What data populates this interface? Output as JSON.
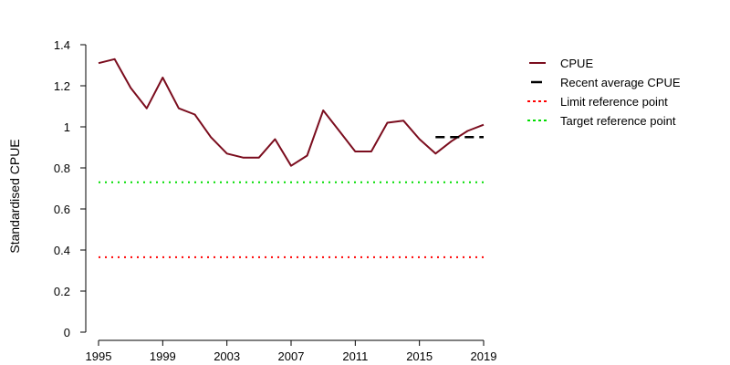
{
  "chart_data": {
    "type": "line",
    "ylabel": "Standardised CPUE",
    "xlabel": "",
    "xlim": [
      1995,
      2019
    ],
    "ylim": [
      0,
      1.4
    ],
    "x_ticks": [
      1995,
      1999,
      2003,
      2007,
      2011,
      2015,
      2019
    ],
    "y_ticks": [
      0,
      0.2,
      0.4,
      0.6,
      0.8,
      1,
      1.2,
      1.4
    ],
    "y_tick_labels": [
      "0",
      "0.2",
      "0.4",
      "0.6",
      "0.8",
      "1",
      "1.2",
      "1.4"
    ],
    "grid": false,
    "legend_position": "top-right",
    "series": [
      {
        "name": "CPUE",
        "style": "solid",
        "color": "#7b0d1e",
        "x": [
          1995,
          1996,
          1997,
          1998,
          1999,
          2000,
          2001,
          2002,
          2003,
          2004,
          2005,
          2006,
          2007,
          2008,
          2009,
          2010,
          2011,
          2012,
          2013,
          2014,
          2015,
          2016,
          2017,
          2018,
          2019
        ],
        "values": [
          1.31,
          1.33,
          1.19,
          1.09,
          1.24,
          1.09,
          1.06,
          0.95,
          0.87,
          0.85,
          0.85,
          0.94,
          0.81,
          0.86,
          1.08,
          0.98,
          0.88,
          0.88,
          1.02,
          1.03,
          0.94,
          0.87,
          0.93,
          0.98,
          1.01
        ]
      },
      {
        "name": "Recent average CPUE",
        "style": "dashed",
        "color": "#000000",
        "x": [
          2016,
          2019
        ],
        "values": [
          0.95,
          0.95
        ]
      },
      {
        "name": "Limit reference point",
        "style": "dotted",
        "color": "#ff0000",
        "x": [
          1995,
          2019
        ],
        "values": [
          0.365,
          0.365
        ]
      },
      {
        "name": "Target reference point",
        "style": "dotted",
        "color": "#00dd00",
        "x": [
          1995,
          2019
        ],
        "values": [
          0.73,
          0.73
        ]
      }
    ]
  }
}
